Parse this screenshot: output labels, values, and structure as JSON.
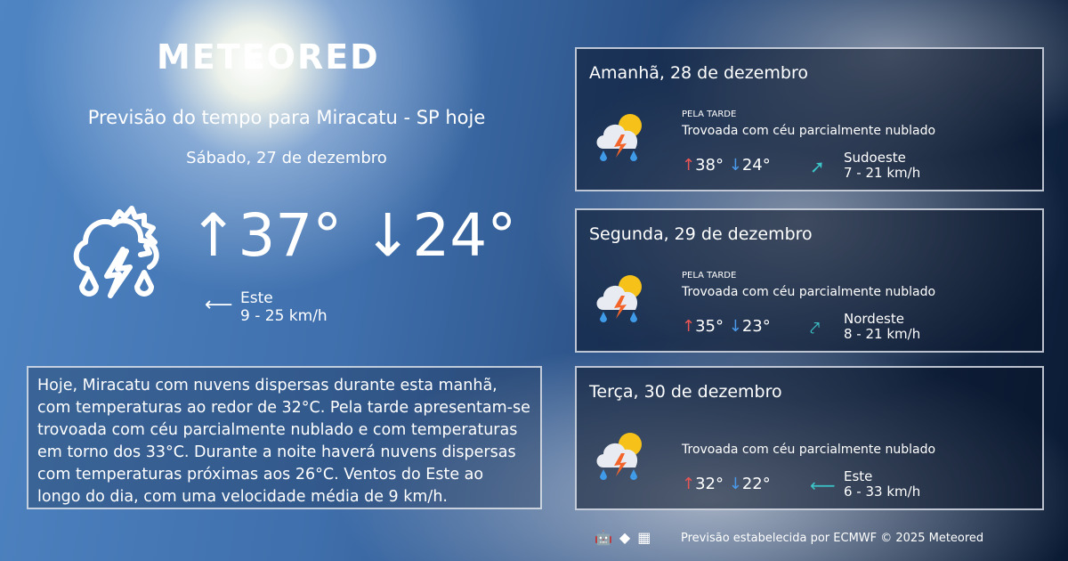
{
  "logo": "METEORED",
  "title": "Previsão do tempo para Miracatu - SP hoje",
  "today": {
    "date": "Sábado, 27 de dezembro",
    "max": "37°",
    "min": "24°",
    "wind_dir": "Este",
    "wind_speed": "9 - 25 km/h",
    "icon": "thunderstorm-partly-cloudy-icon"
  },
  "description": "Hoje, Miracatu com nuvens dispersas durante esta manhã, com temperaturas ao redor de 32°C. Pela tarde apresentam-se trovoada com céu parcialmente nublado e com temperaturas em torno dos 33°C. Durante a noite haverá nuvens dispersas com temperaturas próximas aos 26°C. Ventos do Este ao longo do dia, com uma velocidade média de 9 km/h.",
  "forecast": [
    {
      "day": "Amanhã, 28 de dezembro",
      "period": "PELA TARDE",
      "condition": "Trovoada com céu parcialmente nublado",
      "max": "38°",
      "min": "24°",
      "wind_dir": "Sudoeste",
      "wind_speed": "7 - 21 km/h"
    },
    {
      "day": "Segunda, 29 de dezembro",
      "period": "PELA TARDE",
      "condition": "Trovoada com céu parcialmente nublado",
      "max": "35°",
      "min": "23°",
      "wind_dir": "Nordeste",
      "wind_speed": "8 - 21 km/h"
    },
    {
      "day": "Terça, 30 de dezembro",
      "period": "",
      "condition": "Trovoada com céu parcialmente nublado",
      "max": "32°",
      "min": "22°",
      "wind_dir": "Este",
      "wind_speed": "6 - 33 km/h"
    }
  ],
  "footer": "Previsão estabelecida por ECMWF © 2025 Meteored",
  "colors": {
    "max": "#e85555",
    "min": "#4a98e8",
    "wind": "#3cc4c8"
  }
}
